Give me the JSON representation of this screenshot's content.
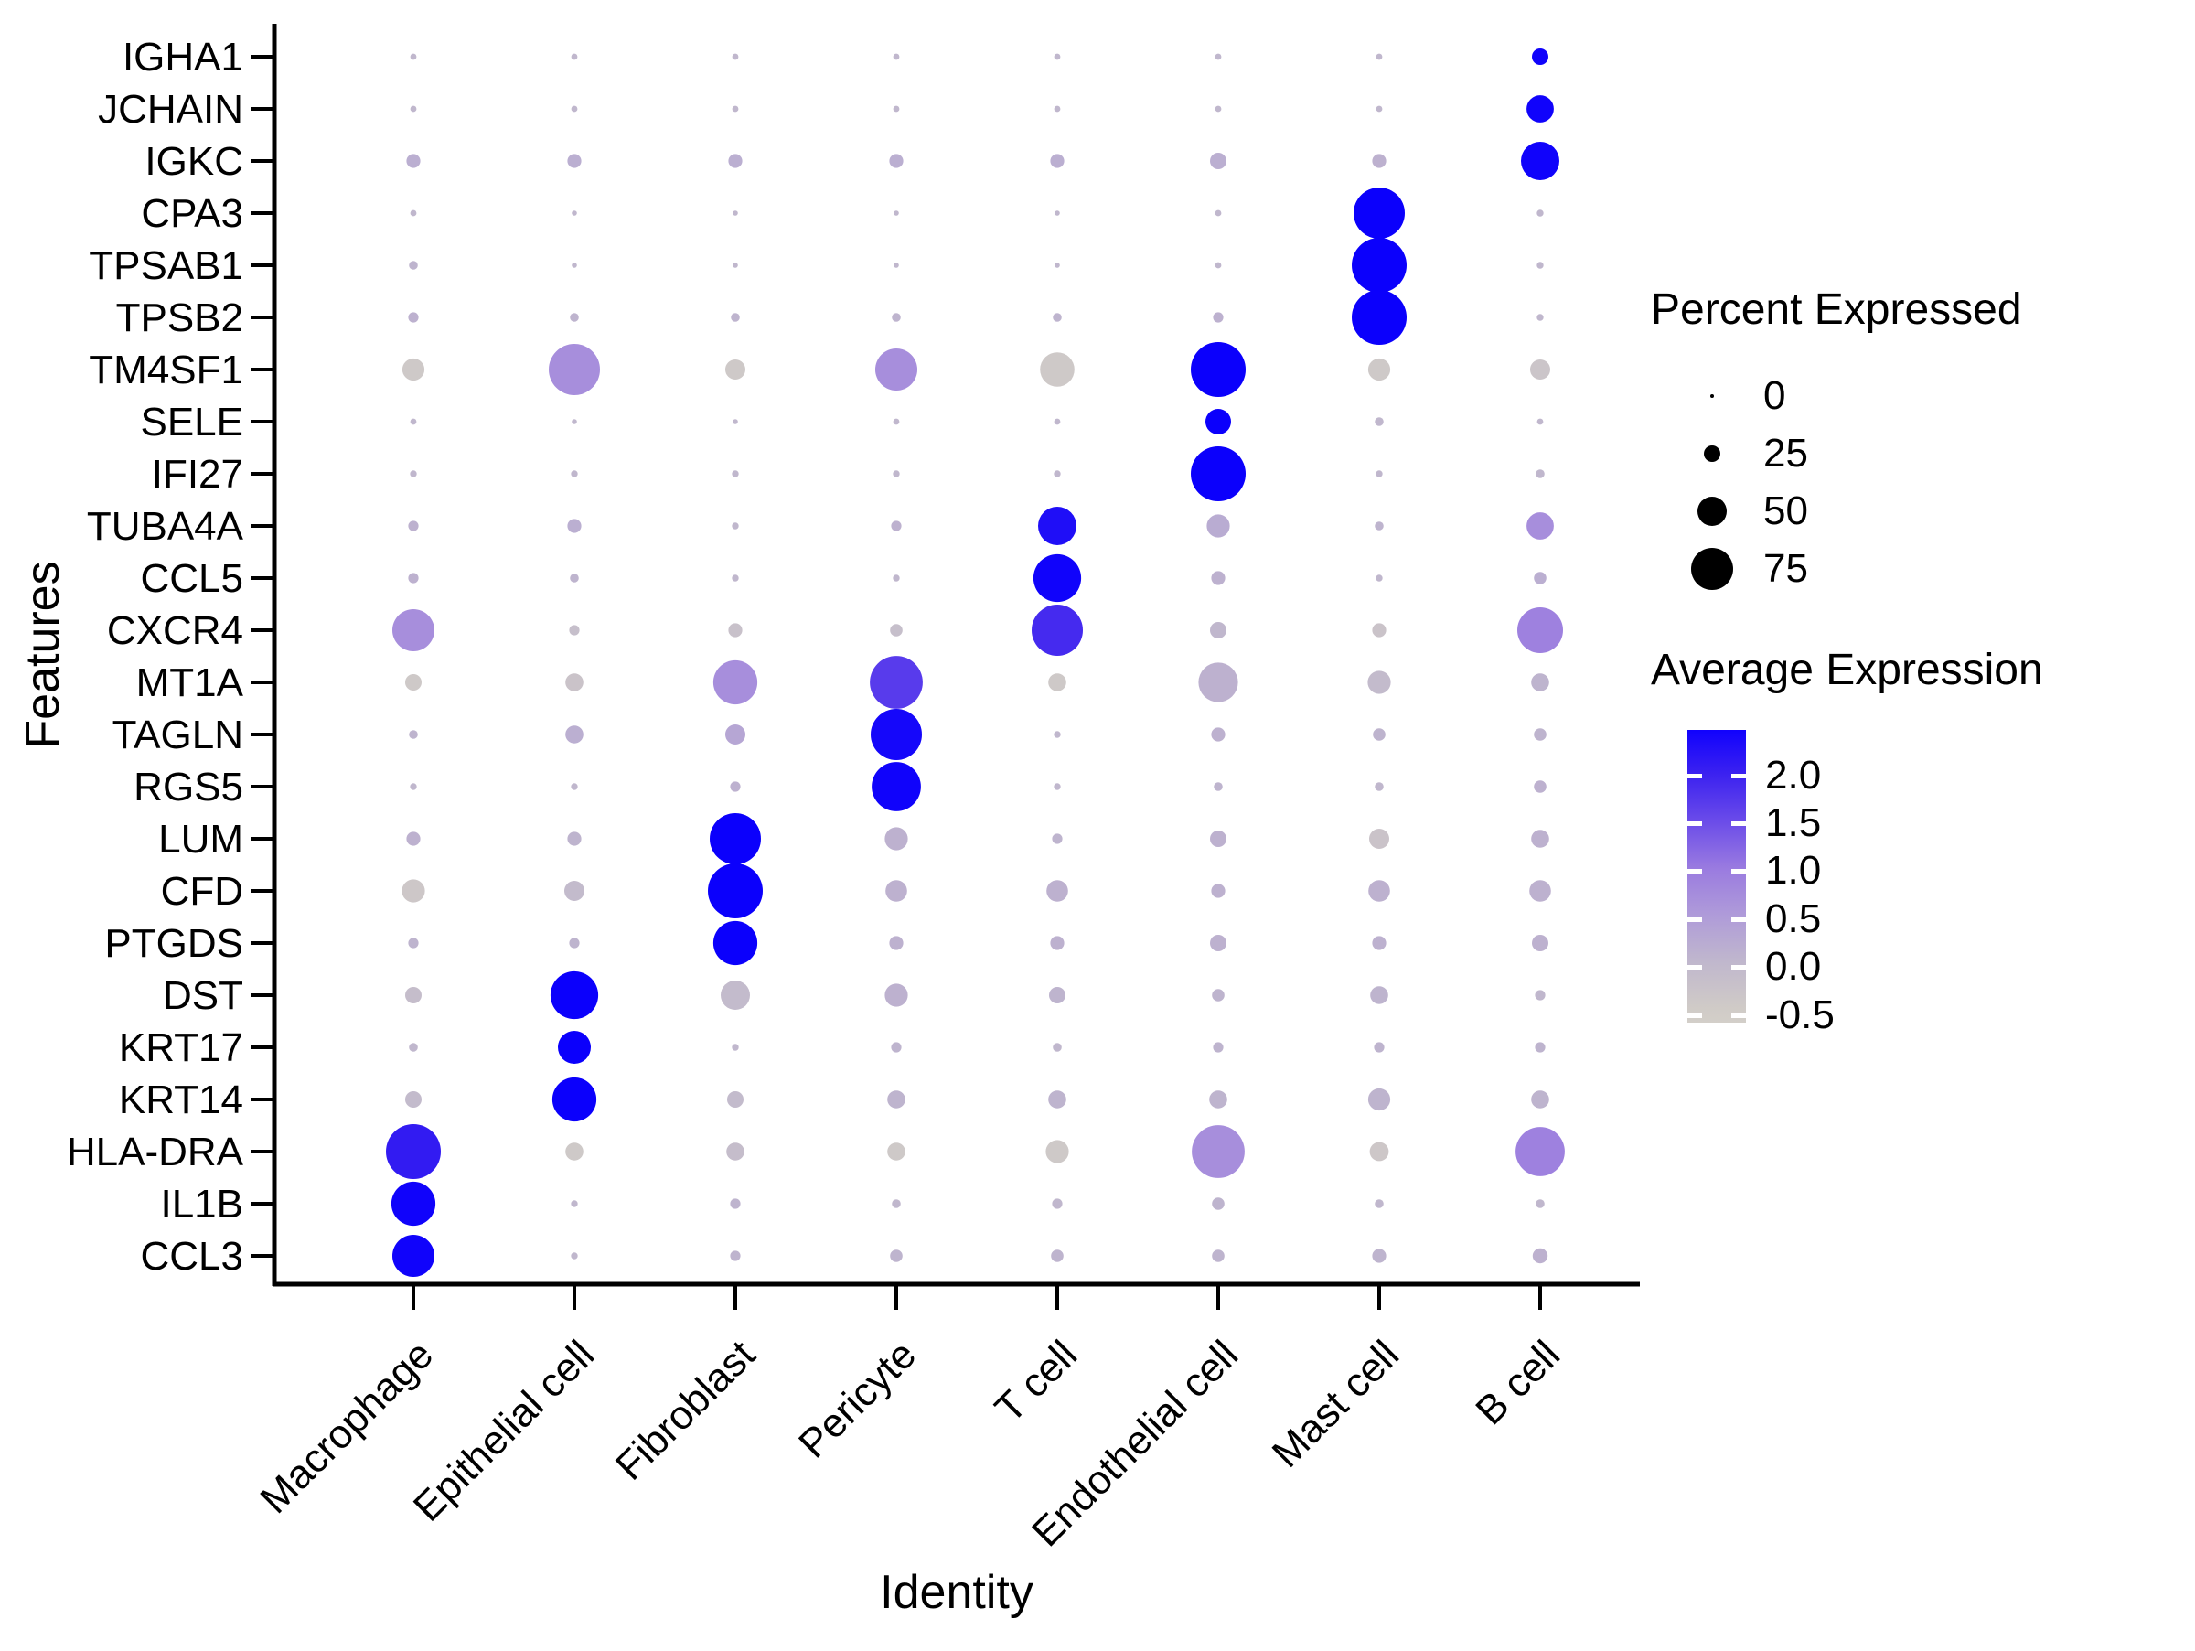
{
  "figure": {
    "x_axis_title": "Identity",
    "y_axis_title": "Features"
  },
  "chart_data": {
    "type": "scatter",
    "subtype": "dot_plot",
    "title": "",
    "xlabel": "Identity",
    "ylabel": "Features",
    "legend_position": "right",
    "grid": false,
    "x_categories": [
      "Macrophage",
      "Epithelial cell",
      "Fibroblast",
      "Pericyte",
      "T cell",
      "Endothelial cell",
      "Mast cell",
      "B cell"
    ],
    "y_categories": [
      "IGHA1",
      "JCHAIN",
      "IGKC",
      "CPA3",
      "TPSAB1",
      "TPSB2",
      "TM4SF1",
      "SELE",
      "IFI27",
      "TUBA4A",
      "CCL5",
      "CXCR4",
      "MT1A",
      "TAGLN",
      "RGS5",
      "LUM",
      "CFD",
      "PTGDS",
      "DST",
      "KRT17",
      "KRT14",
      "HLA-DRA",
      "IL1B",
      "CCL3"
    ],
    "series": [
      {
        "gene": "IGHA1",
        "percent_expressed": [
          5,
          5,
          5,
          5,
          5,
          5,
          5,
          25
        ],
        "avg_expression": [
          0,
          0,
          0,
          0,
          0,
          0,
          0,
          2.45
        ]
      },
      {
        "gene": "JCHAIN",
        "percent_expressed": [
          5,
          5,
          5,
          5,
          5,
          5,
          5,
          46
        ],
        "avg_expression": [
          0,
          0,
          0,
          0,
          0,
          0,
          0,
          2.45
        ]
      },
      {
        "gene": "IGKC",
        "percent_expressed": [
          20,
          20,
          20,
          20,
          20,
          25,
          20,
          68
        ],
        "avg_expression": [
          0.15,
          0.15,
          0.15,
          0.15,
          0.15,
          0.15,
          0.1,
          2.45
        ]
      },
      {
        "gene": "CPA3",
        "percent_expressed": [
          5,
          3,
          3,
          3,
          3,
          5,
          93,
          6
        ],
        "avg_expression": [
          0,
          0,
          0,
          0,
          0,
          0,
          2.5,
          0
        ]
      },
      {
        "gene": "TPSAB1",
        "percent_expressed": [
          10,
          3,
          3,
          3,
          3,
          5,
          100,
          6
        ],
        "avg_expression": [
          0.05,
          0,
          0,
          0,
          0,
          0,
          2.5,
          0
        ]
      },
      {
        "gene": "TPSB2",
        "percent_expressed": [
          13,
          10,
          10,
          10,
          10,
          13,
          100,
          6
        ],
        "avg_expression": [
          0.1,
          0.05,
          0.05,
          0.05,
          0.05,
          0.1,
          2.5,
          0
        ]
      },
      {
        "gene": "TM4SF1",
        "percent_expressed": [
          36,
          93,
          32,
          75,
          60,
          100,
          36,
          32
        ],
        "avg_expression": [
          -0.45,
          0.7,
          -0.45,
          0.7,
          -0.45,
          2.5,
          -0.45,
          -0.35
        ]
      },
      {
        "gene": "SELE",
        "percent_expressed": [
          5,
          3,
          3,
          5,
          5,
          43,
          10,
          5
        ],
        "avg_expression": [
          0,
          0,
          0,
          0,
          0,
          2.5,
          0,
          0
        ]
      },
      {
        "gene": "IFI27",
        "percent_expressed": [
          6,
          6,
          6,
          6,
          6,
          100,
          6,
          10
        ],
        "avg_expression": [
          0,
          0,
          0,
          0,
          0,
          2.5,
          0,
          0
        ]
      },
      {
        "gene": "TUBA4A",
        "percent_expressed": [
          13,
          20,
          6,
          13,
          68,
          38,
          10,
          46
        ],
        "avg_expression": [
          0.1,
          0.15,
          0,
          0.1,
          2.3,
          0.2,
          0.05,
          0.7
        ]
      },
      {
        "gene": "CCL5",
        "percent_expressed": [
          13,
          10,
          6,
          6,
          86,
          20,
          6,
          17
        ],
        "avg_expression": [
          0.1,
          0.05,
          0,
          0,
          2.45,
          0.1,
          0,
          0.15
        ]
      },
      {
        "gene": "CXCR4",
        "percent_expressed": [
          75,
          13,
          20,
          17,
          93,
          25,
          20,
          82
        ],
        "avg_expression": [
          0.7,
          -0.2,
          -0.25,
          -0.2,
          1.9,
          0,
          -0.3,
          0.9
        ]
      },
      {
        "gene": "MT1A",
        "percent_expressed": [
          25,
          28,
          79,
          96,
          28,
          70,
          38,
          28
        ],
        "avg_expression": [
          -0.45,
          -0.3,
          0.7,
          1.7,
          -0.45,
          0.1,
          -0.1,
          0.05
        ]
      },
      {
        "gene": "TAGLN",
        "percent_expressed": [
          10,
          28,
          32,
          93,
          6,
          20,
          17,
          17
        ],
        "avg_expression": [
          0.05,
          0.15,
          0.3,
          2.4,
          0,
          0.1,
          0.05,
          0.05
        ]
      },
      {
        "gene": "RGS5",
        "percent_expressed": [
          6,
          6,
          13,
          89,
          6,
          10,
          10,
          17
        ],
        "avg_expression": [
          0,
          0,
          0.1,
          2.45,
          0,
          0.05,
          0,
          0.1
        ]
      },
      {
        "gene": "LUM",
        "percent_expressed": [
          20,
          20,
          93,
          38,
          13,
          25,
          32,
          28
        ],
        "avg_expression": [
          0.1,
          0.05,
          2.5,
          0.1,
          0.05,
          0.1,
          -0.3,
          0.1
        ]
      },
      {
        "gene": "CFD",
        "percent_expressed": [
          38,
          32,
          100,
          35,
          35,
          20,
          35,
          35
        ],
        "avg_expression": [
          -0.4,
          -0.1,
          2.5,
          0.1,
          0.1,
          0.1,
          0.1,
          0.1
        ]
      },
      {
        "gene": "PTGDS",
        "percent_expressed": [
          13,
          13,
          79,
          20,
          20,
          25,
          20,
          25
        ],
        "avg_expression": [
          0.05,
          0.05,
          2.5,
          0.1,
          0.1,
          0.1,
          0.1,
          0.1
        ]
      },
      {
        "gene": "DST",
        "percent_expressed": [
          25,
          86,
          50,
          38,
          25,
          17,
          28,
          13
        ],
        "avg_expression": [
          -0.15,
          2.5,
          -0.1,
          0.1,
          0.05,
          0.05,
          0.05,
          0
        ]
      },
      {
        "gene": "KRT17",
        "percent_expressed": [
          10,
          57,
          6,
          13,
          10,
          13,
          13,
          13
        ],
        "avg_expression": [
          0,
          2.5,
          0,
          0.05,
          0,
          0.05,
          0.05,
          0.05
        ]
      },
      {
        "gene": "KRT14",
        "percent_expressed": [
          25,
          79,
          25,
          28,
          28,
          28,
          36,
          28
        ],
        "avg_expression": [
          -0.1,
          2.5,
          -0.1,
          0.05,
          0.05,
          0.05,
          0.05,
          0.05
        ]
      },
      {
        "gene": "HLA-DRA",
        "percent_expressed": [
          100,
          28,
          28,
          28,
          38,
          96,
          30,
          89
        ],
        "avg_expression": [
          2.1,
          -0.45,
          -0.15,
          -0.45,
          -0.45,
          0.7,
          -0.4,
          0.9
        ]
      },
      {
        "gene": "IL1B",
        "percent_expressed": [
          79,
          6,
          13,
          10,
          13,
          17,
          10,
          10
        ],
        "avg_expression": [
          2.45,
          0,
          0.05,
          0,
          0,
          0.05,
          0,
          0
        ]
      },
      {
        "gene": "CCL3",
        "percent_expressed": [
          75,
          6,
          13,
          17,
          17,
          17,
          20,
          22
        ],
        "avg_expression": [
          2.45,
          0,
          0.05,
          0.05,
          0.05,
          0.05,
          0.05,
          0.1
        ]
      }
    ],
    "size_legend": {
      "title": "Percent Expressed",
      "ticks": [
        "0",
        "25",
        "50",
        "75"
      ]
    },
    "color_legend": {
      "title": "Average Expression",
      "ticks": [
        "2.0",
        "1.5",
        "1.0",
        "0.5",
        "0.0",
        "-0.5"
      ],
      "domain": [
        -0.65,
        2.48
      ],
      "stops": [
        [
          -0.65,
          "#d3cfc9"
        ],
        [
          -0.5,
          "#d0cbc7"
        ],
        [
          0.0,
          "#c0b7cd"
        ],
        [
          0.5,
          "#af9bd9"
        ],
        [
          1.0,
          "#9a7be0"
        ],
        [
          1.5,
          "#6b4ce9"
        ],
        [
          2.0,
          "#3c22f0"
        ],
        [
          2.5,
          "#0b00fc"
        ]
      ]
    }
  }
}
